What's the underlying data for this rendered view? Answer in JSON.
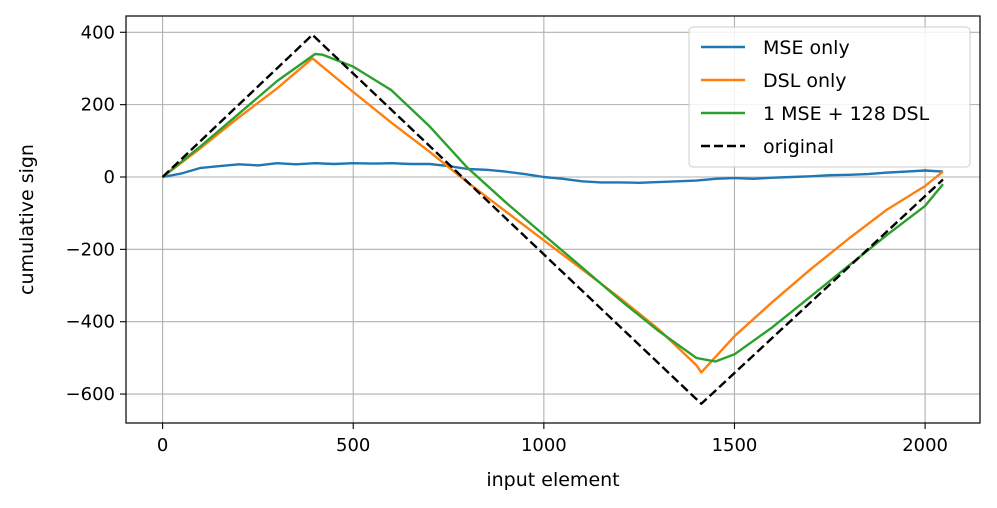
{
  "chart_data": {
    "type": "line",
    "title": "",
    "xlabel": "input element",
    "ylabel": "cumulative sign",
    "xlim": [
      -96,
      2144
    ],
    "ylim": [
      -680,
      445
    ],
    "x_ticks": [
      0,
      500,
      1000,
      1500,
      2000
    ],
    "y_ticks": [
      400,
      200,
      0,
      -200,
      -400,
      -600
    ],
    "x_tick_labels": [
      "0",
      "500",
      "1000",
      "1500",
      "2000"
    ],
    "y_tick_labels": [
      "400",
      "200",
      "0",
      "−200",
      "−400",
      "−600"
    ],
    "grid": true,
    "legend_position": "top-right",
    "series": [
      {
        "name": "MSE only",
        "color": "#1f77b4",
        "style": "solid",
        "x": [
          0,
          50,
          100,
          150,
          200,
          250,
          300,
          350,
          400,
          450,
          500,
          550,
          600,
          650,
          700,
          750,
          800,
          850,
          900,
          950,
          1000,
          1050,
          1100,
          1150,
          1200,
          1250,
          1300,
          1350,
          1400,
          1450,
          1500,
          1550,
          1600,
          1650,
          1700,
          1750,
          1800,
          1850,
          1900,
          1950,
          2000,
          2047
        ],
        "y": [
          0,
          10,
          25,
          30,
          35,
          32,
          38,
          35,
          38,
          36,
          38,
          37,
          38,
          36,
          36,
          30,
          22,
          20,
          15,
          8,
          0,
          -5,
          -12,
          -15,
          -15,
          -16,
          -14,
          -12,
          -10,
          -5,
          -3,
          -5,
          -2,
          0,
          2,
          5,
          6,
          8,
          12,
          15,
          18,
          15
        ]
      },
      {
        "name": "DSL only",
        "color": "#ff7f0e",
        "style": "solid",
        "x": [
          0,
          100,
          200,
          300,
          393,
          500,
          600,
          700,
          800,
          900,
          1000,
          1100,
          1200,
          1300,
          1400,
          1413,
          1500,
          1600,
          1700,
          1800,
          1900,
          2000,
          2047
        ],
        "y": [
          0,
          80,
          165,
          245,
          328,
          235,
          150,
          70,
          -15,
          -95,
          -175,
          -255,
          -335,
          -420,
          -520,
          -540,
          -440,
          -345,
          -255,
          -170,
          -90,
          -25,
          15
        ]
      },
      {
        "name": "1 MSE + 128 DSL",
        "color": "#2ca02c",
        "style": "solid",
        "x": [
          0,
          100,
          200,
          300,
          400,
          420,
          500,
          600,
          700,
          800,
          900,
          1000,
          1100,
          1200,
          1300,
          1400,
          1450,
          1500,
          1600,
          1700,
          1800,
          1900,
          2000,
          2047
        ],
        "y": [
          0,
          85,
          175,
          265,
          340,
          338,
          305,
          240,
          140,
          25,
          -70,
          -160,
          -250,
          -340,
          -425,
          -500,
          -510,
          -490,
          -415,
          -330,
          -245,
          -160,
          -80,
          -20
        ]
      },
      {
        "name": "original",
        "color": "#000000",
        "style": "dashed",
        "x": [
          0,
          393,
          1413,
          2047
        ],
        "y": [
          0,
          393,
          -627,
          -7
        ]
      }
    ]
  }
}
